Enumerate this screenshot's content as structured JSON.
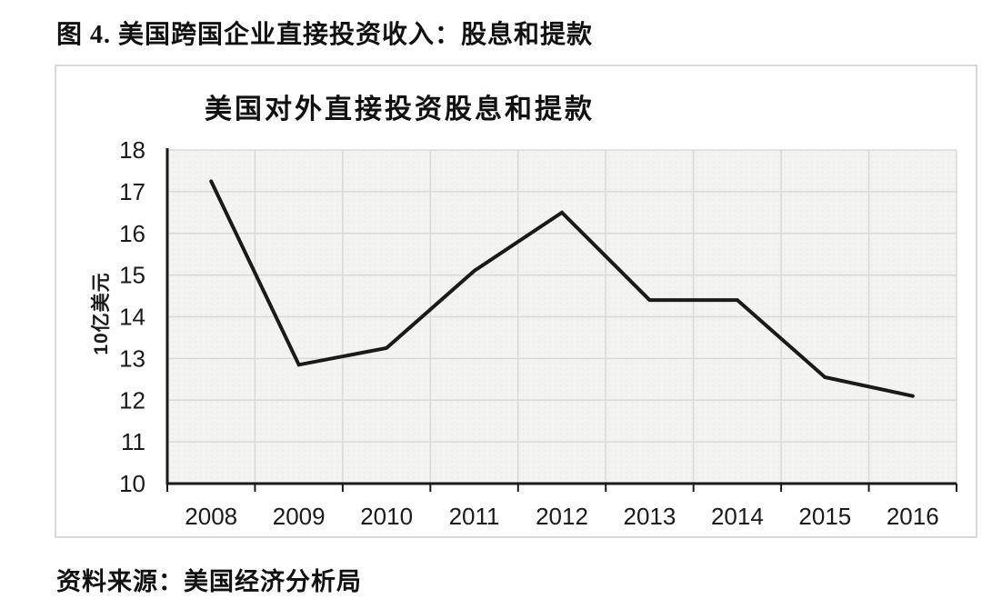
{
  "page": {
    "figure_title": "图 4. 美国跨国企业直接投资收入：股息和提款",
    "source_note": "资料来源：美国经济分析局"
  },
  "chart_data": {
    "type": "line",
    "title": "美国对外直接投资股息和提款",
    "ylabel": "10亿美元",
    "xlabel": "",
    "categories": [
      "2008",
      "2009",
      "2010",
      "2011",
      "2012",
      "2013",
      "2014",
      "2015",
      "2016"
    ],
    "values": [
      17.25,
      12.85,
      13.25,
      15.1,
      16.5,
      14.4,
      14.4,
      12.55,
      12.1
    ],
    "ylim": [
      10,
      18
    ],
    "ytick_step": 1,
    "grid": true,
    "legend_position": "none",
    "line_color": "#1a1a1a",
    "axis_color": "#1a1a1a",
    "grid_color": "#d9d9d9",
    "plot_bg_color": "#f3f3f1",
    "tick_label_color": "#1a1a1a"
  }
}
